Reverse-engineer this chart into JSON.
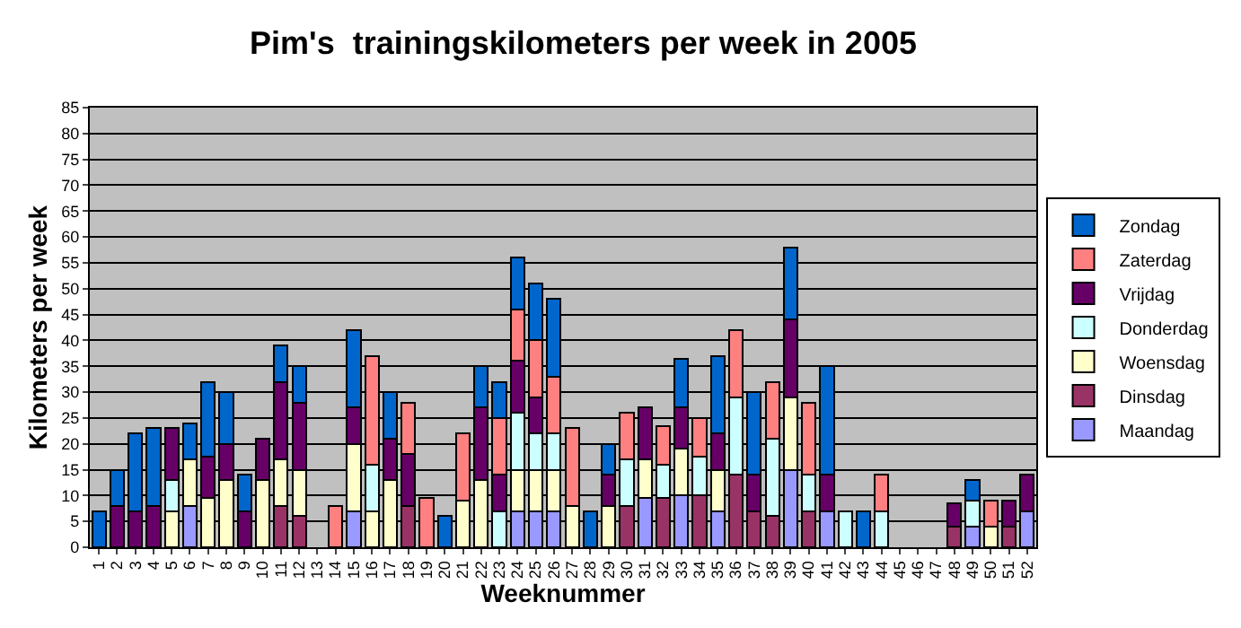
{
  "chart_data": {
    "type": "bar",
    "title": "Pim's  trainingskilometers per week in 2005",
    "xlabel": "Weeknummer",
    "ylabel": "Kilometers per week",
    "categories": [
      "1",
      "2",
      "3",
      "4",
      "5",
      "6",
      "7",
      "8",
      "9",
      "10",
      "11",
      "12",
      "13",
      "14",
      "15",
      "16",
      "17",
      "18",
      "19",
      "20",
      "21",
      "22",
      "23",
      "24",
      "25",
      "26",
      "27",
      "28",
      "29",
      "30",
      "31",
      "32",
      "33",
      "34",
      "35",
      "36",
      "37",
      "38",
      "39",
      "40",
      "41",
      "42",
      "43",
      "44",
      "45",
      "46",
      "47",
      "48",
      "49",
      "50",
      "51",
      "52"
    ],
    "stacked": true,
    "ylim": [
      0,
      85
    ],
    "yticks": [
      0,
      5,
      10,
      15,
      20,
      25,
      30,
      35,
      40,
      45,
      50,
      55,
      60,
      65,
      70,
      75,
      80,
      85
    ],
    "grid": "y",
    "legend": "right",
    "series": [
      {
        "name": "Maandag",
        "color": "#9999ff",
        "values": [
          null,
          null,
          null,
          null,
          null,
          8,
          null,
          null,
          null,
          null,
          null,
          null,
          null,
          null,
          7,
          null,
          null,
          null,
          null,
          null,
          null,
          null,
          null,
          7,
          7,
          7,
          null,
          null,
          null,
          null,
          9.5,
          null,
          10,
          null,
          7,
          null,
          null,
          null,
          15,
          null,
          7,
          null,
          null,
          null,
          null,
          null,
          null,
          null,
          4,
          null,
          null,
          7
        ]
      },
      {
        "name": "Dinsdag",
        "color": "#993366",
        "values": [
          null,
          null,
          null,
          null,
          null,
          null,
          null,
          null,
          null,
          null,
          8,
          6,
          null,
          null,
          null,
          null,
          null,
          8,
          null,
          null,
          null,
          null,
          null,
          null,
          null,
          null,
          null,
          null,
          null,
          8,
          null,
          9.5,
          null,
          10,
          null,
          14,
          7,
          6,
          null,
          7,
          null,
          null,
          null,
          null,
          null,
          null,
          null,
          4,
          null,
          null,
          4,
          null
        ]
      },
      {
        "name": "Woensdag",
        "color": "#ffffcc",
        "values": [
          null,
          null,
          null,
          null,
          7,
          9,
          9.5,
          13,
          null,
          13,
          9,
          9,
          null,
          null,
          13,
          7,
          13,
          null,
          null,
          null,
          9,
          13,
          null,
          8,
          8,
          8,
          8,
          null,
          8,
          null,
          7.5,
          null,
          9,
          null,
          8,
          null,
          null,
          null,
          14,
          null,
          null,
          null,
          null,
          null,
          null,
          null,
          null,
          null,
          null,
          4,
          null,
          null
        ]
      },
      {
        "name": "Donderdag",
        "color": "#ccffff",
        "values": [
          null,
          null,
          null,
          null,
          6,
          null,
          null,
          null,
          null,
          null,
          null,
          null,
          null,
          null,
          null,
          9,
          null,
          null,
          null,
          null,
          null,
          null,
          7,
          11,
          7,
          7,
          null,
          null,
          null,
          9,
          null,
          6.5,
          null,
          7.5,
          null,
          15,
          null,
          15,
          null,
          7,
          null,
          7,
          null,
          7,
          null,
          null,
          null,
          null,
          5,
          null,
          null,
          null
        ]
      },
      {
        "name": "Vrijdag",
        "color": "#660066",
        "values": [
          null,
          8,
          7,
          8,
          10,
          null,
          8,
          7,
          7,
          8,
          15,
          13,
          null,
          null,
          7,
          null,
          8,
          10,
          null,
          null,
          null,
          14,
          7,
          10,
          7,
          null,
          null,
          null,
          6,
          null,
          10,
          null,
          8,
          null,
          7,
          null,
          7,
          null,
          15,
          null,
          7,
          null,
          null,
          null,
          null,
          null,
          null,
          4.5,
          null,
          null,
          5,
          7
        ]
      },
      {
        "name": "Zaterdag",
        "color": "#ff8080",
        "values": [
          null,
          null,
          null,
          null,
          null,
          null,
          null,
          null,
          null,
          null,
          null,
          null,
          null,
          8,
          null,
          21,
          null,
          10,
          9.5,
          null,
          13,
          null,
          11,
          10,
          11,
          11,
          15,
          null,
          null,
          9,
          null,
          7.5,
          null,
          7.5,
          null,
          13,
          null,
          11,
          null,
          14,
          null,
          null,
          null,
          7,
          null,
          null,
          null,
          null,
          null,
          5,
          null,
          null
        ]
      },
      {
        "name": "Zondag",
        "color": "#0066cc",
        "values": [
          7,
          7,
          15,
          15,
          null,
          7,
          14.5,
          10,
          7,
          null,
          7,
          7,
          null,
          null,
          15,
          null,
          9,
          null,
          null,
          6,
          null,
          8,
          7,
          10,
          11,
          15,
          null,
          7,
          6,
          null,
          null,
          null,
          9.5,
          null,
          15,
          null,
          16,
          null,
          14,
          null,
          21,
          null,
          7,
          null,
          null,
          null,
          null,
          null,
          4,
          null,
          null,
          null
        ]
      }
    ]
  }
}
